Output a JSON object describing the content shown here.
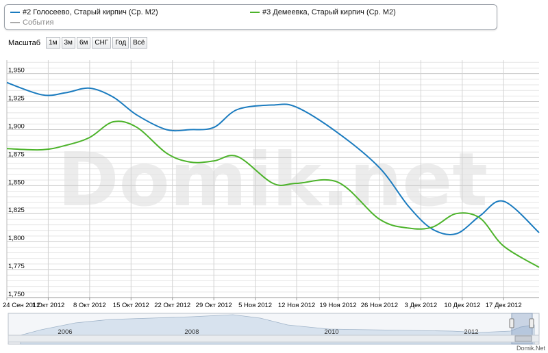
{
  "legend": {
    "items": [
      {
        "label": "#2 Голосеево, Старый кирпич (Ср. М2)",
        "color": "#1a7bbf"
      },
      {
        "label": "#3 Демеевка, Старый кирпич (Ср. М2)",
        "color": "#4cb32a"
      },
      {
        "label": "События",
        "color": "#aaaaaa"
      }
    ]
  },
  "zoom": {
    "label": "Масштаб",
    "buttons": [
      "1м",
      "3м",
      "6м",
      "СНГ",
      "Год",
      "Всё"
    ]
  },
  "watermark": "Domik.net",
  "footer": "Domik.Net",
  "navigator": {
    "years": [
      "2006",
      "2008",
      "2010",
      "2012"
    ]
  },
  "chart_data": {
    "type": "line",
    "title": "",
    "xlabel": "",
    "ylabel": "",
    "ylim": [
      1750,
      1962
    ],
    "y_ticks": [
      "1,750",
      "1,775",
      "1,800",
      "1,825",
      "1,850",
      "1,875",
      "1,900",
      "1,925",
      "1,950"
    ],
    "x_ticks": [
      "24 Сен 2012",
      "1 Окт 2012",
      "8 Окт 2012",
      "15 Окт 2012",
      "22 Окт 2012",
      "29 Окт 2012",
      "5 Ноя 2012",
      "12 Ноя 2012",
      "19 Ноя 2012",
      "26 Ноя 2012",
      "3 Дек 2012",
      "10 Дек 2012",
      "17 Дек 2012"
    ],
    "x": [
      "2012-09-24",
      "2012-09-30",
      "2012-10-04",
      "2012-10-08",
      "2012-10-12",
      "2012-10-16",
      "2012-10-21",
      "2012-10-25",
      "2012-10-29",
      "2012-11-02",
      "2012-11-08",
      "2012-11-12",
      "2012-11-19",
      "2012-11-26",
      "2012-12-01",
      "2012-12-05",
      "2012-12-09",
      "2012-12-13",
      "2012-12-17",
      "2012-12-23"
    ],
    "series": [
      {
        "name": "#2 Голосеево, Старый кирпич (Ср. М2)",
        "color": "#1a7bbf",
        "values": [
          1942,
          1931,
          1933,
          1937,
          1929,
          1913,
          1900,
          1900,
          1902,
          1918,
          1922,
          1920,
          1897,
          1866,
          1831,
          1811,
          1807,
          1823,
          1836,
          1808
        ]
      },
      {
        "name": "#3 Демеевка, Старый кирпич (Ср. М2)",
        "color": "#4cb32a",
        "values": [
          1883,
          1882,
          1886,
          1893,
          1907,
          1902,
          1879,
          1871,
          1872,
          1876,
          1852,
          1852,
          1853,
          1820,
          1812,
          1813,
          1825,
          1821,
          1796,
          1777
        ]
      }
    ],
    "grid": true,
    "legend": "top"
  }
}
